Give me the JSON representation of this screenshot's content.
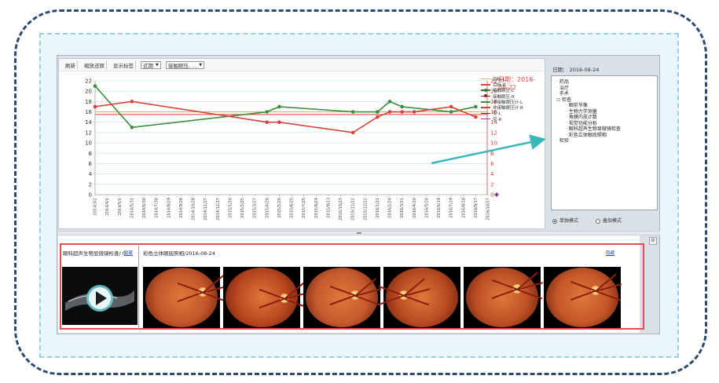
{
  "toolbar": {
    "refresh_label": "刷新",
    "reset_zoom_label": "缩放还原",
    "show_labels_label": "显示标签",
    "range_select": "近期",
    "metric_select": "接触眼压, ..."
  },
  "chart_data": {
    "type": "line",
    "x": [
      "2014/3/2",
      "2014/4/1",
      "2014/5/1",
      "2014/5/31",
      "2014/6/30",
      "2014/7/30",
      "2014/8/29",
      "2014/9/28",
      "2014/10/28",
      "2014/11/27",
      "2014/12/27",
      "2015/1/26",
      "2015/2/25",
      "2015/3/27",
      "2015/4/26",
      "2015/5/26",
      "2015/6/25",
      "2015/7/25",
      "2015/8/24",
      "2015/9/23",
      "2015/10/23",
      "2015/11/22",
      "2015/12/22",
      "2016/1/21",
      "2016/2/20",
      "2016/3/21",
      "2016/4/20",
      "2016/5/20",
      "2016/6/19",
      "2016/7/19",
      "2016/8/18",
      "2016/9/17",
      "2016/10/17"
    ],
    "ylim_left": [
      0,
      22
    ],
    "ylim_right": [
      0,
      22
    ],
    "y_ticks_left": [
      "0",
      "2",
      "4",
      "6",
      "8",
      "10",
      "12",
      "14",
      "16",
      "18",
      "20",
      "22"
    ],
    "y_ticks_right": [
      "0",
      "2",
      "4",
      "6",
      "8",
      "10",
      "12",
      "14",
      "16",
      "18",
      "20",
      "22"
    ],
    "right_axis_title": "日期：2016-08-22",
    "series": [
      {
        "name": "非接触眼压计-L",
        "color": "#3a8f3a",
        "points": [
          [
            0,
            21
          ],
          [
            3,
            13
          ],
          [
            14,
            16
          ],
          [
            15,
            17
          ],
          [
            21,
            16
          ],
          [
            23,
            16
          ],
          [
            24,
            18
          ],
          [
            25,
            17
          ],
          [
            29,
            16
          ],
          [
            31,
            17
          ]
        ]
      },
      {
        "name": "非接触眼压计-R",
        "color": "#d9433a",
        "points": [
          [
            0,
            17
          ],
          [
            3,
            18
          ],
          [
            14,
            14
          ],
          [
            15,
            14
          ],
          [
            21,
            12
          ],
          [
            23,
            15
          ],
          [
            24,
            16
          ],
          [
            25,
            16
          ],
          [
            26,
            16
          ],
          [
            29,
            17
          ],
          [
            31,
            15
          ]
        ]
      }
    ],
    "reference_lines": [
      {
        "name": "目标-L",
        "color": "#c9b870",
        "value": 16
      },
      {
        "name": "目标-R",
        "color": "#d9433a",
        "value": 15.5
      }
    ],
    "grid": true,
    "legend_position": "top-right"
  },
  "legend": [
    {
      "label": "目标-L",
      "color": "#c9b870",
      "dot": false
    },
    {
      "label": "目标-R",
      "color": "#d9433a",
      "dot": false
    },
    {
      "label": "接触眼压-L",
      "color": "#2e7d32",
      "dot": true
    },
    {
      "label": "接触眼压-R",
      "color": "#8e1f1f",
      "dot": true
    },
    {
      "label": "非接触眼压计-L",
      "color": "#3a8f3a",
      "dot": false
    },
    {
      "label": "非接触眼压计-R",
      "color": "#d9433a",
      "dot": false
    },
    {
      "label": "空-L",
      "color": "#2b3a8f",
      "dot": false
    },
    {
      "label": "空-R",
      "color": "#9b3a8f",
      "dot": false
    }
  ],
  "side": {
    "date_label": "日期： 2016-08-24",
    "tree": [
      {
        "label": "药品",
        "level": 1
      },
      {
        "label": "治疗",
        "level": 1
      },
      {
        "label": "手术",
        "level": 1
      },
      {
        "label": "检查",
        "level": 1
      },
      {
        "label": "眼前节像",
        "level": 2
      },
      {
        "label": "生物力学测量",
        "level": 2
      },
      {
        "label": "角膜内皮计数",
        "level": 2
      },
      {
        "label": "视觉功能分析",
        "level": 2
      },
      {
        "label": "眼科超声生物显微镜检查",
        "level": 2
      },
      {
        "label": "彩色立体眼底照相",
        "level": 2
      },
      {
        "label": "检验",
        "level": 1
      }
    ],
    "mode_single": "单独模式",
    "mode_overlay": "叠加模式"
  },
  "images": {
    "ubm_title": "眼科超声生物显微镜检查/ 0",
    "ubm_link": "隐藏",
    "fundus_title": "彩色立体眼底照相/2016-08-24",
    "fundus_link": "隐藏"
  }
}
